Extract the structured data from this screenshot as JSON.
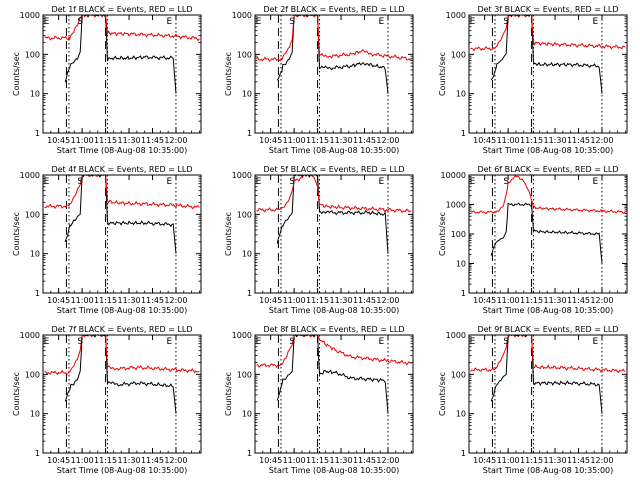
{
  "figure": {
    "panel_titles": [
      "Det 1f  BLACK = Events, RED = LLD",
      "Det 2f  BLACK = Events, RED = LLD",
      "Det 3f  BLACK = Events, RED = LLD",
      "Det 4f  BLACK = Events, RED = LLD",
      "Det 5f  BLACK = Events, RED = LLD",
      "Det 6f  BLACK = Events, RED = LLD",
      "Det 7f  BLACK = Events, RED = LLD",
      "Det 8f  BLACK = Events, RED = LLD",
      "Det 9f  BLACK = Events, RED = LLD"
    ],
    "xlabel": "Start Time (08-Aug-08 10:35:00)",
    "ylabel": "Counts/sec",
    "x_ticks": [
      "10:45",
      "11:00",
      "11:15",
      "11:30",
      "11:45",
      "12:00"
    ],
    "y_ticks": [
      "1",
      "10",
      "100",
      "1000"
    ],
    "markers": [
      "E",
      "S",
      "E"
    ]
  },
  "colors": {
    "events": "#000000",
    "lld": "#ee0000",
    "axes": "#000000",
    "background": "#ffffff"
  },
  "chart_data": [
    {
      "type": "line",
      "title": "Det 1f  BLACK = Events, RED = LLD",
      "xlabel": "Start Time (08-Aug-08 10:35:00)",
      "ylabel": "Counts/sec",
      "xlim": [
        10.5833,
        12.2667
      ],
      "ylim": [
        1,
        1000
      ],
      "yscale": "log",
      "x_unit": "hours UT",
      "series": [
        {
          "name": "BLACK = Events",
          "x": [
            10.82,
            10.87,
            10.88,
            10.91,
            10.95,
            10.98,
            11.0,
            11.25,
            11.27,
            11.33,
            11.5,
            11.67,
            11.97,
            12.0
          ],
          "y": [
            20,
            50,
            55,
            65,
            80,
            110,
            1000,
            1000,
            75,
            80,
            80,
            85,
            80,
            10
          ]
        },
        {
          "name": "RED = LLD",
          "x": [
            10.6,
            10.85,
            10.87,
            10.91,
            10.95,
            10.98,
            11.0,
            11.25,
            11.27,
            11.33,
            11.5,
            11.75,
            12.0,
            12.25
          ],
          "y": [
            260,
            260,
            280,
            400,
            600,
            800,
            1000,
            1000,
            350,
            340,
            330,
            310,
            290,
            250
          ]
        }
      ]
    },
    {
      "type": "line",
      "title": "Det 2f  BLACK = Events, RED = LLD",
      "xlabel": "Start Time (08-Aug-08 10:35:00)",
      "ylabel": "Counts/sec",
      "xlim": [
        10.5833,
        12.2667
      ],
      "ylim": [
        1,
        1000
      ],
      "yscale": "log",
      "x_unit": "hours UT",
      "series": [
        {
          "name": "BLACK = Events",
          "x": [
            10.82,
            10.87,
            10.88,
            10.91,
            10.95,
            10.98,
            11.0,
            11.25,
            11.27,
            11.4,
            11.6,
            11.72,
            11.8,
            11.97,
            12.0
          ],
          "y": [
            20,
            40,
            50,
            60,
            80,
            110,
            1000,
            1000,
            45,
            45,
            50,
            60,
            55,
            45,
            10
          ]
        },
        {
          "name": "RED = LLD",
          "x": [
            10.6,
            10.85,
            10.87,
            10.91,
            10.95,
            10.98,
            11.0,
            11.25,
            11.27,
            11.4,
            11.6,
            11.72,
            11.85,
            12.0,
            12.25
          ],
          "y": [
            75,
            75,
            80,
            110,
            150,
            250,
            1000,
            1000,
            95,
            90,
            100,
            120,
            100,
            90,
            75
          ]
        }
      ]
    },
    {
      "type": "line",
      "title": "Det 3f  BLACK = Events, RED = LLD",
      "xlabel": "Start Time (08-Aug-08 10:35:00)",
      "ylabel": "Counts/sec",
      "xlim": [
        10.5833,
        12.2667
      ],
      "ylim": [
        1,
        1000
      ],
      "yscale": "log",
      "x_unit": "hours UT",
      "series": [
        {
          "name": "BLACK = Events",
          "x": [
            10.82,
            10.87,
            10.88,
            10.91,
            10.95,
            10.98,
            11.0,
            11.25,
            11.27,
            11.33,
            11.5,
            11.67,
            11.97,
            12.0
          ],
          "y": [
            20,
            45,
            55,
            65,
            80,
            110,
            1000,
            1000,
            60,
            55,
            55,
            55,
            50,
            10
          ]
        },
        {
          "name": "RED = LLD",
          "x": [
            10.6,
            10.85,
            10.87,
            10.91,
            10.95,
            10.98,
            11.0,
            11.25,
            11.27,
            11.33,
            11.5,
            11.75,
            12.0,
            12.25
          ],
          "y": [
            140,
            140,
            150,
            200,
            300,
            500,
            1000,
            1000,
            200,
            190,
            180,
            170,
            160,
            150
          ]
        }
      ]
    },
    {
      "type": "line",
      "title": "Det 4f  BLACK = Events, RED = LLD",
      "xlabel": "Start Time (08-Aug-08 10:35:00)",
      "ylabel": "Counts/sec",
      "xlim": [
        10.5833,
        12.2667
      ],
      "ylim": [
        1,
        1000
      ],
      "yscale": "log",
      "x_unit": "hours UT",
      "series": [
        {
          "name": "BLACK = Events",
          "x": [
            10.82,
            10.87,
            10.88,
            10.91,
            10.95,
            10.98,
            11.0,
            11.25,
            11.27,
            11.33,
            11.5,
            11.67,
            11.97,
            12.0
          ],
          "y": [
            20,
            50,
            55,
            65,
            80,
            110,
            1000,
            1000,
            60,
            60,
            60,
            60,
            55,
            10
          ]
        },
        {
          "name": "RED = LLD",
          "x": [
            10.6,
            10.85,
            10.87,
            10.91,
            10.95,
            10.98,
            11.0,
            11.25,
            11.27,
            11.33,
            11.5,
            11.75,
            12.0,
            12.25
          ],
          "y": [
            160,
            160,
            170,
            250,
            400,
            600,
            1000,
            1000,
            220,
            200,
            190,
            180,
            170,
            150
          ]
        }
      ]
    },
    {
      "type": "line",
      "title": "Det 5f  BLACK = Events, RED = LLD",
      "xlabel": "Start Time (08-Aug-08 10:35:00)",
      "ylabel": "Counts/sec",
      "xlim": [
        10.5833,
        12.2667
      ],
      "ylim": [
        1,
        1000
      ],
      "yscale": "log",
      "x_unit": "hours UT",
      "series": [
        {
          "name": "BLACK = Events",
          "x": [
            10.82,
            10.87,
            10.88,
            10.91,
            10.95,
            10.98,
            11.0,
            11.25,
            11.27,
            11.4,
            11.6,
            11.8,
            11.97,
            12.0
          ],
          "y": [
            20,
            45,
            55,
            65,
            85,
            110,
            1000,
            1000,
            120,
            110,
            110,
            110,
            100,
            10
          ]
        },
        {
          "name": "RED = LLD",
          "x": [
            10.6,
            10.85,
            10.87,
            10.91,
            10.95,
            10.98,
            11.0,
            11.1,
            11.18,
            11.22,
            11.25,
            11.27,
            11.33,
            11.5,
            11.75,
            12.0,
            12.25
          ],
          "y": [
            130,
            130,
            140,
            180,
            260,
            380,
            700,
            900,
            1000,
            800,
            500,
            180,
            160,
            150,
            140,
            130,
            120
          ]
        }
      ]
    },
    {
      "type": "line",
      "title": "Det 6f  BLACK = Events, RED = LLD",
      "xlabel": "Start Time (08-Aug-08 10:35:00)",
      "ylabel": "Counts/sec",
      "xlim": [
        10.5833,
        12.2667
      ],
      "ylim": [
        1,
        10000
      ],
      "yscale": "log",
      "x_unit": "hours UT",
      "series": [
        {
          "name": "BLACK = Events",
          "x": [
            10.82,
            10.87,
            10.88,
            10.91,
            10.95,
            10.98,
            11.0,
            11.25,
            11.27,
            11.33,
            11.5,
            11.67,
            11.97,
            12.0
          ],
          "y": [
            20,
            50,
            55,
            65,
            80,
            110,
            1000,
            1000,
            130,
            120,
            115,
            110,
            100,
            10
          ]
        },
        {
          "name": "RED = LLD",
          "x": [
            10.6,
            10.85,
            10.87,
            10.91,
            10.95,
            10.98,
            11.0,
            11.05,
            11.1,
            11.15,
            11.2,
            11.24,
            11.27,
            11.33,
            11.5,
            11.75,
            12.0,
            12.25
          ],
          "y": [
            550,
            550,
            560,
            700,
            1000,
            2000,
            5000,
            8000,
            9000,
            7000,
            4000,
            2000,
            800,
            750,
            700,
            650,
            600,
            550
          ]
        }
      ]
    },
    {
      "type": "line",
      "title": "Det 7f  BLACK = Events, RED = LLD",
      "xlabel": "Start Time (08-Aug-08 10:35:00)",
      "ylabel": "Counts/sec",
      "xlim": [
        10.5833,
        12.2667
      ],
      "ylim": [
        1,
        1000
      ],
      "yscale": "log",
      "x_unit": "hours UT",
      "series": [
        {
          "name": "BLACK = Events",
          "x": [
            10.82,
            10.87,
            10.88,
            10.91,
            10.95,
            10.98,
            11.0,
            11.25,
            11.27,
            11.4,
            11.6,
            11.8,
            11.97,
            12.0
          ],
          "y": [
            20,
            45,
            50,
            60,
            80,
            110,
            1000,
            1000,
            60,
            55,
            60,
            55,
            50,
            10
          ]
        },
        {
          "name": "RED = LLD",
          "x": [
            10.6,
            10.85,
            10.87,
            10.91,
            10.95,
            10.98,
            11.0,
            11.25,
            11.27,
            11.4,
            11.6,
            11.8,
            12.0,
            12.25
          ],
          "y": [
            110,
            110,
            120,
            170,
            250,
            400,
            1000,
            1000,
            150,
            140,
            150,
            140,
            130,
            120
          ]
        }
      ]
    },
    {
      "type": "line",
      "title": "Det 8f  BLACK = Events, RED = LLD",
      "xlabel": "Start Time (08-Aug-08 10:35:00)",
      "ylabel": "Counts/sec",
      "xlim": [
        10.5833,
        12.2667
      ],
      "ylim": [
        1,
        1000
      ],
      "yscale": "log",
      "x_unit": "hours UT",
      "series": [
        {
          "name": "BLACK = Events",
          "x": [
            10.82,
            10.87,
            10.88,
            10.91,
            10.95,
            10.98,
            11.0,
            11.25,
            11.27,
            11.33,
            11.45,
            11.6,
            11.8,
            11.97,
            12.0
          ],
          "y": [
            20,
            60,
            70,
            80,
            100,
            120,
            1000,
            1000,
            100,
            120,
            110,
            80,
            75,
            70,
            10
          ]
        },
        {
          "name": "RED = LLD",
          "x": [
            10.6,
            10.85,
            10.87,
            10.91,
            10.95,
            10.98,
            11.0,
            11.25,
            11.27,
            11.33,
            11.45,
            11.6,
            11.8,
            12.0,
            12.25
          ],
          "y": [
            170,
            170,
            180,
            250,
            400,
            600,
            1000,
            1000,
            800,
            600,
            400,
            280,
            250,
            220,
            190
          ]
        }
      ]
    },
    {
      "type": "line",
      "title": "Det 9f  BLACK = Events, RED = LLD",
      "xlabel": "Start Time (08-Aug-08 10:35:00)",
      "ylabel": "Counts/sec",
      "xlim": [
        10.5833,
        12.2667
      ],
      "ylim": [
        1,
        1000
      ],
      "yscale": "log",
      "x_unit": "hours UT",
      "series": [
        {
          "name": "BLACK = Events",
          "x": [
            10.82,
            10.87,
            10.88,
            10.91,
            10.95,
            10.98,
            11.0,
            11.25,
            11.27,
            11.33,
            11.5,
            11.67,
            11.97,
            12.0
          ],
          "y": [
            20,
            50,
            55,
            65,
            80,
            110,
            1000,
            1000,
            60,
            60,
            60,
            60,
            55,
            10
          ]
        },
        {
          "name": "RED = LLD",
          "x": [
            10.6,
            10.85,
            10.87,
            10.91,
            10.95,
            10.98,
            11.0,
            11.25,
            11.27,
            11.33,
            11.5,
            11.75,
            12.0,
            12.25
          ],
          "y": [
            130,
            130,
            140,
            200,
            300,
            500,
            1000,
            1000,
            160,
            150,
            150,
            140,
            130,
            120
          ]
        }
      ]
    }
  ]
}
